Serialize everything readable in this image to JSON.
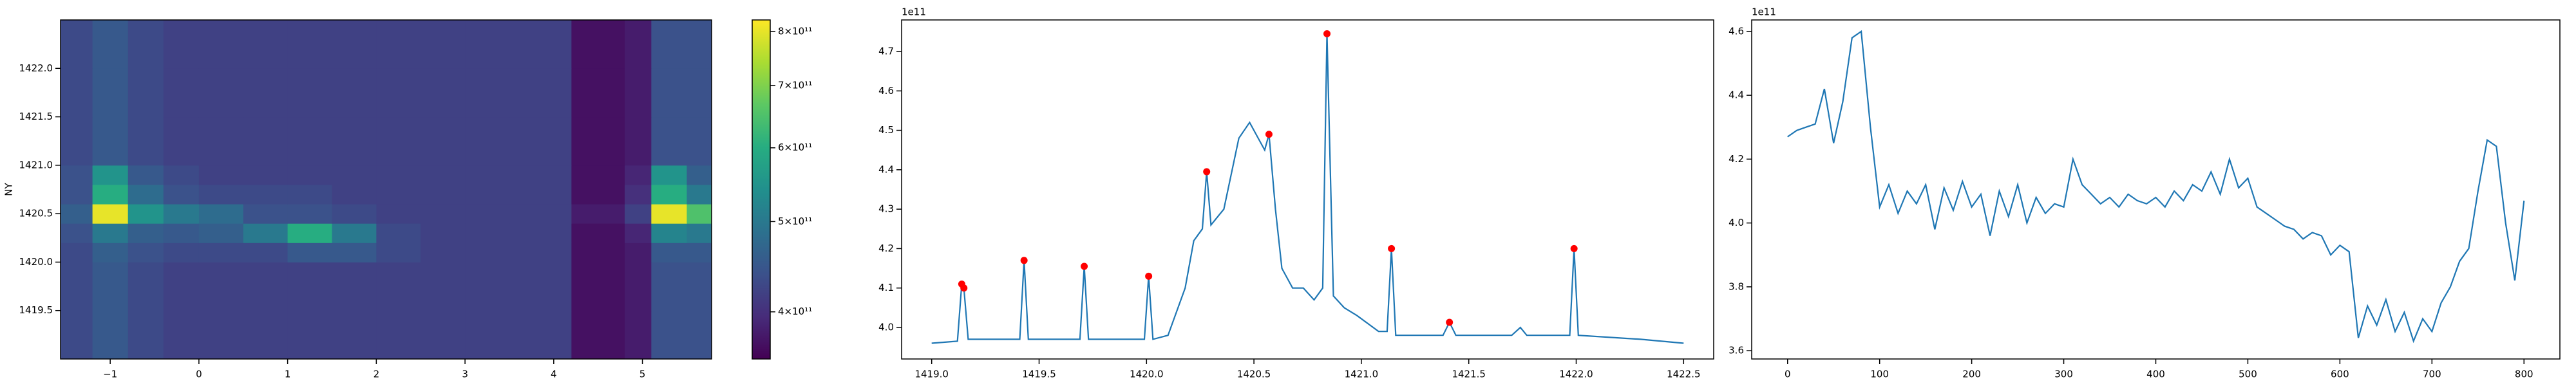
{
  "chart_data": [
    {
      "type": "heatmap",
      "ylabel": "NY",
      "xlim": [
        -1.56,
        5.78
      ],
      "ylim": [
        1419.0,
        1422.5
      ],
      "xticks": [
        {
          "value": -1,
          "label": "−1"
        },
        0,
        1,
        2,
        3,
        4,
        5
      ],
      "yticks": [
        1419.5,
        {
          "value": 1420,
          "label": "1420.0"
        },
        1420.5,
        {
          "value": 1421,
          "label": "1421.0"
        },
        1421.5,
        {
          "value": 1422,
          "label": "1422.0"
        }
      ],
      "x_edges": [
        -1.56,
        -1.2,
        -0.8,
        -0.4,
        0,
        0.5,
        1,
        1.5,
        2,
        2.5,
        3,
        3.5,
        4.2,
        4.8,
        5.1,
        5.5,
        5.78
      ],
      "y_edges": [
        1419.0,
        1419.5,
        1420.0,
        1420.2,
        1420.4,
        1420.6,
        1420.8,
        1421.0,
        1421.5,
        1422.0,
        1422.5
      ],
      "z": [
        [
          430000000000.0,
          450000000000.0,
          430000000000.0,
          420000000000.0,
          420000000000.0,
          420000000000.0,
          420000000000.0,
          420000000000.0,
          420000000000.0,
          420000000000.0,
          420000000000.0,
          420000000000.0,
          370000000000.0,
          380000000000.0,
          440000000000.0,
          440000000000.0
        ],
        [
          430000000000.0,
          450000000000.0,
          430000000000.0,
          420000000000.0,
          420000000000.0,
          420000000000.0,
          420000000000.0,
          420000000000.0,
          420000000000.0,
          420000000000.0,
          420000000000.0,
          420000000000.0,
          370000000000.0,
          380000000000.0,
          440000000000.0,
          440000000000.0
        ],
        [
          430000000000.0,
          460000000000.0,
          440000000000.0,
          430000000000.0,
          430000000000.0,
          430000000000.0,
          450000000000.0,
          450000000000.0,
          430000000000.0,
          420000000000.0,
          420000000000.0,
          420000000000.0,
          370000000000.0,
          380000000000.0,
          450000000000.0,
          450000000000.0
        ],
        [
          440000000000.0,
          500000000000.0,
          460000000000.0,
          450000000000.0,
          460000000000.0,
          500000000000.0,
          600000000000.0,
          500000000000.0,
          430000000000.0,
          420000000000.0,
          420000000000.0,
          420000000000.0,
          370000000000.0,
          390000000000.0,
          520000000000.0,
          500000000000.0
        ],
        [
          460000000000.0,
          800000000000.0,
          550000000000.0,
          500000000000.0,
          480000000000.0,
          440000000000.0,
          440000000000.0,
          430000000000.0,
          420000000000.0,
          420000000000.0,
          420000000000.0,
          420000000000.0,
          380000000000.0,
          420000000000.0,
          800000000000.0,
          650000000000.0
        ],
        [
          440000000000.0,
          600000000000.0,
          480000000000.0,
          440000000000.0,
          430000000000.0,
          430000000000.0,
          430000000000.0,
          420000000000.0,
          420000000000.0,
          420000000000.0,
          420000000000.0,
          420000000000.0,
          370000000000.0,
          400000000000.0,
          600000000000.0,
          500000000000.0
        ],
        [
          440000000000.0,
          550000000000.0,
          450000000000.0,
          430000000000.0,
          420000000000.0,
          420000000000.0,
          420000000000.0,
          420000000000.0,
          420000000000.0,
          420000000000.0,
          420000000000.0,
          420000000000.0,
          370000000000.0,
          390000000000.0,
          550000000000.0,
          460000000000.0
        ],
        [
          430000000000.0,
          450000000000.0,
          430000000000.0,
          420000000000.0,
          420000000000.0,
          420000000000.0,
          420000000000.0,
          420000000000.0,
          420000000000.0,
          420000000000.0,
          420000000000.0,
          420000000000.0,
          370000000000.0,
          380000000000.0,
          440000000000.0,
          440000000000.0
        ],
        [
          430000000000.0,
          450000000000.0,
          430000000000.0,
          420000000000.0,
          420000000000.0,
          420000000000.0,
          420000000000.0,
          420000000000.0,
          420000000000.0,
          420000000000.0,
          420000000000.0,
          420000000000.0,
          370000000000.0,
          380000000000.0,
          440000000000.0,
          440000000000.0
        ],
        [
          430000000000.0,
          450000000000.0,
          430000000000.0,
          420000000000.0,
          420000000000.0,
          420000000000.0,
          420000000000.0,
          420000000000.0,
          420000000000.0,
          420000000000.0,
          420000000000.0,
          420000000000.0,
          370000000000.0,
          380000000000.0,
          440000000000.0,
          440000000000.0
        ]
      ],
      "colormap": "viridis",
      "colorbar": {
        "log": true,
        "lim": [
          356000000000.0,
          823000000000.0
        ],
        "ticks": [
          {
            "value": 400000000000.0,
            "label": "4×10¹¹"
          },
          {
            "value": 500000000000.0,
            "label": "5×10¹¹"
          },
          {
            "value": 600000000000.0,
            "label": "6×10¹¹"
          },
          {
            "value": 700000000000.0,
            "label": "7×10¹¹"
          },
          {
            "value": 800000000000.0,
            "label": "8×10¹¹"
          }
        ]
      }
    },
    {
      "type": "line",
      "offset_label": "1e11",
      "xlim": [
        1418.86,
        1422.64
      ],
      "ylim": [
        3.92,
        4.78
      ],
      "xticks": [
        {
          "value": 1419,
          "label": "1419.0"
        },
        1419.5,
        {
          "value": 1420,
          "label": "1420.0"
        },
        1420.5,
        {
          "value": 1421,
          "label": "1421.0"
        },
        1421.5,
        {
          "value": 1422,
          "label": "1422.0"
        },
        1422.5
      ],
      "yticks": [
        {
          "value": 4,
          "label": "4.0"
        },
        4.1,
        4.2,
        4.3,
        4.4,
        4.5,
        4.6,
        4.7
      ],
      "series": [
        {
          "color": "#1f77b4",
          "marker": false,
          "x": [
            1419.0,
            1419.12,
            1419.14,
            1419.15,
            1419.17,
            1419.41,
            1419.43,
            1419.45,
            1419.69,
            1419.71,
            1419.73,
            1419.99,
            1420.01,
            1420.03,
            1420.1,
            1420.18,
            1420.22,
            1420.26,
            1420.28,
            1420.3,
            1420.36,
            1420.43,
            1420.48,
            1420.53,
            1420.55,
            1420.57,
            1420.6,
            1420.63,
            1420.68,
            1420.73,
            1420.78,
            1420.82,
            1420.84,
            1420.87,
            1420.92,
            1420.98,
            1421.08,
            1421.12,
            1421.14,
            1421.16,
            1421.38,
            1421.41,
            1421.44,
            1421.7,
            1421.74,
            1421.77,
            1421.97,
            1421.99,
            1422.01,
            1422.3,
            1422.5
          ],
          "values": [
            3.96,
            3.965,
            4.11,
            4.1,
            3.97,
            3.97,
            4.17,
            3.97,
            3.97,
            4.155,
            3.97,
            3.97,
            4.13,
            3.97,
            3.98,
            4.1,
            4.22,
            4.25,
            4.395,
            4.26,
            4.3,
            4.48,
            4.52,
            4.47,
            4.45,
            4.49,
            4.3,
            4.15,
            4.1,
            4.1,
            4.07,
            4.1,
            4.745,
            4.08,
            4.05,
            4.03,
            3.99,
            3.99,
            4.2,
            3.98,
            3.98,
            4.013,
            3.98,
            3.98,
            4.0,
            3.98,
            3.98,
            4.2,
            3.98,
            3.97,
            3.96
          ]
        },
        {
          "color": "red",
          "marker": true,
          "x": [
            1419.14,
            1419.15,
            1419.43,
            1419.71,
            1420.01,
            1420.28,
            1420.57,
            1420.84,
            1421.14,
            1421.41,
            1421.99
          ],
          "values": [
            4.11,
            4.1,
            4.17,
            4.155,
            4.13,
            4.395,
            4.49,
            4.745,
            4.2,
            4.013,
            4.2
          ]
        }
      ]
    },
    {
      "type": "line",
      "offset_label": "1e11",
      "xlim": [
        -39,
        839
      ],
      "ylim": [
        3.574,
        4.636
      ],
      "xticks": [
        0,
        100,
        200,
        300,
        400,
        500,
        600,
        700,
        800
      ],
      "yticks": [
        3.6,
        3.8,
        {
          "value": 4,
          "label": "4.0"
        },
        4.2,
        4.4,
        4.6
      ],
      "series": [
        {
          "color": "#1f77b4",
          "marker": false,
          "x": [
            0,
            10,
            20,
            30,
            40,
            50,
            60,
            70,
            80,
            90,
            100,
            110,
            120,
            130,
            140,
            150,
            160,
            170,
            180,
            190,
            200,
            210,
            220,
            230,
            240,
            250,
            260,
            270,
            280,
            290,
            300,
            310,
            320,
            330,
            340,
            350,
            360,
            370,
            380,
            390,
            400,
            410,
            420,
            430,
            440,
            450,
            460,
            470,
            480,
            490,
            500,
            510,
            520,
            530,
            540,
            550,
            560,
            570,
            580,
            590,
            600,
            610,
            620,
            630,
            640,
            650,
            660,
            670,
            680,
            690,
            700,
            710,
            720,
            730,
            740,
            750,
            760,
            770,
            780,
            790,
            800
          ],
          "values": [
            4.27,
            4.29,
            4.3,
            4.31,
            4.42,
            4.25,
            4.38,
            4.58,
            4.6,
            4.3,
            4.05,
            4.12,
            4.03,
            4.1,
            4.06,
            4.12,
            3.98,
            4.11,
            4.04,
            4.13,
            4.05,
            4.09,
            3.96,
            4.1,
            4.02,
            4.12,
            4.0,
            4.08,
            4.03,
            4.06,
            4.05,
            4.2,
            4.12,
            4.09,
            4.06,
            4.08,
            4.05,
            4.09,
            4.07,
            4.06,
            4.08,
            4.05,
            4.1,
            4.07,
            4.12,
            4.1,
            4.16,
            4.09,
            4.2,
            4.11,
            4.14,
            4.05,
            4.03,
            4.01,
            3.99,
            3.98,
            3.95,
            3.97,
            3.96,
            3.9,
            3.93,
            3.91,
            3.64,
            3.74,
            3.68,
            3.76,
            3.66,
            3.72,
            3.63,
            3.7,
            3.66,
            3.75,
            3.8,
            3.88,
            3.92,
            4.1,
            4.26,
            4.24,
            4.0,
            3.82,
            4.07
          ]
        }
      ]
    }
  ]
}
